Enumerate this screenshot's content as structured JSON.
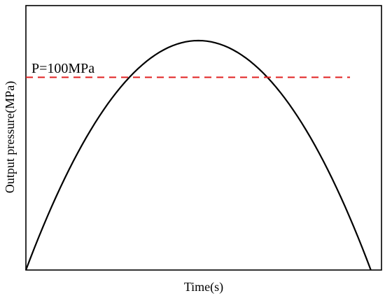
{
  "chart_data": {
    "type": "line",
    "title": "",
    "xlabel": "Time(s)",
    "ylabel": "Output pressure(MPa)",
    "xaxis_ticks": false,
    "yaxis_ticks": false,
    "grid": false,
    "series": [
      {
        "color": "#000000",
        "shape": "parabola",
        "start": [
          0,
          0
        ],
        "peak": [
          0.5,
          1.0
        ],
        "end": [
          0.97,
          0
        ]
      }
    ],
    "annotations": [
      {
        "type": "hline",
        "label": "P=100MPa",
        "level": 0.84,
        "color": "#e02020",
        "style": "dashed"
      }
    ],
    "frame": "box"
  }
}
